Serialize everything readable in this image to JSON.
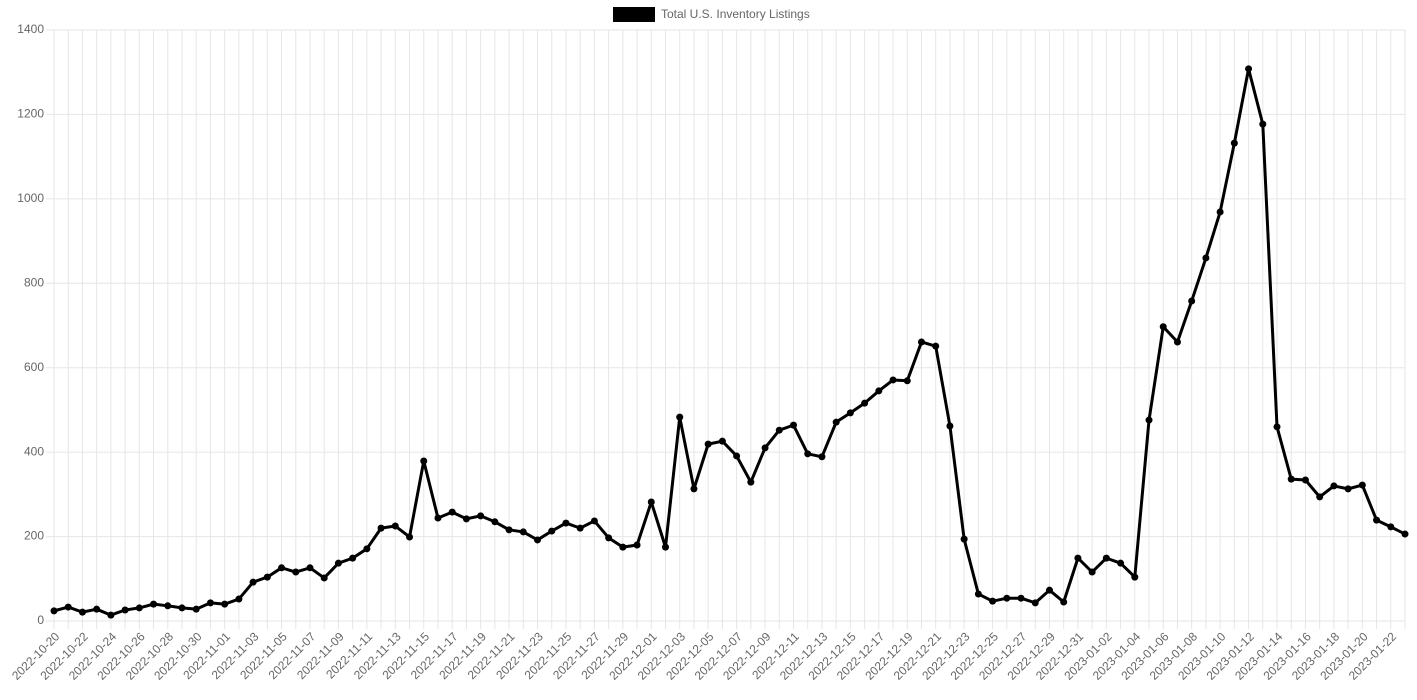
{
  "chart_data": {
    "type": "line",
    "categories": [
      "2022-10-20",
      null,
      "2022-10-22",
      null,
      "2022-10-24",
      null,
      "2022-10-26",
      null,
      "2022-10-28",
      null,
      "2022-10-30",
      null,
      "2022-11-01",
      null,
      "2022-11-03",
      null,
      "2022-11-05",
      null,
      "2022-11-07",
      null,
      "2022-11-09",
      null,
      "2022-11-11",
      null,
      "2022-11-13",
      null,
      "2022-11-15",
      null,
      "2022-11-17",
      null,
      "2022-11-19",
      null,
      "2022-11-21",
      null,
      "2022-11-23",
      null,
      "2022-11-25",
      null,
      "2022-11-27",
      null,
      "2022-11-29",
      null,
      "2022-12-01",
      null,
      "2022-12-03",
      null,
      "2022-12-05",
      null,
      "2022-12-07",
      null,
      "2022-12-09",
      null,
      "2022-12-11",
      null,
      "2022-12-13",
      null,
      "2022-12-15",
      null,
      "2022-12-17",
      null,
      "2022-12-19",
      null,
      "2022-12-21",
      null,
      "2022-12-23",
      null,
      "2022-12-25",
      null,
      "2022-12-27",
      null,
      "2022-12-29",
      null,
      "2022-12-31",
      null,
      "2023-01-02",
      null,
      "2023-01-04",
      null,
      "2023-01-06",
      null,
      "2023-01-08",
      null,
      "2023-01-10",
      null,
      "2023-01-12",
      null,
      "2023-01-14",
      null,
      "2023-01-16",
      null,
      "2023-01-18",
      null,
      "2023-01-20",
      null,
      "2023-01-22",
      null
    ],
    "series": [
      {
        "name": "Total U.S. Inventory Listings",
        "color": "#000000",
        "values": [
          24,
          33,
          21,
          28,
          14,
          26,
          31,
          40,
          36,
          31,
          28,
          43,
          40,
          52,
          92,
          104,
          126,
          116,
          126,
          102,
          137,
          149,
          171,
          220,
          225,
          199,
          379,
          244,
          258,
          242,
          249,
          235,
          216,
          211,
          192,
          213,
          232,
          220,
          237,
          197,
          175,
          180,
          282,
          175,
          483,
          313,
          419,
          426,
          391,
          329,
          410,
          452,
          464,
          396,
          389,
          471,
          493,
          516,
          545,
          571,
          569,
          661,
          651,
          462,
          194,
          64,
          47,
          54,
          54,
          43,
          73,
          45,
          149,
          116,
          149,
          137,
          104,
          476,
          697,
          661,
          758,
          860,
          969,
          1132,
          1308,
          1177,
          460,
          336,
          334,
          294,
          320,
          313,
          322,
          239,
          223,
          206
        ]
      }
    ],
    "ylim": [
      0,
      1400
    ],
    "yticks": [
      0,
      200,
      400,
      600,
      800,
      1000,
      1200,
      1400
    ],
    "grid": true,
    "legend": "top"
  }
}
